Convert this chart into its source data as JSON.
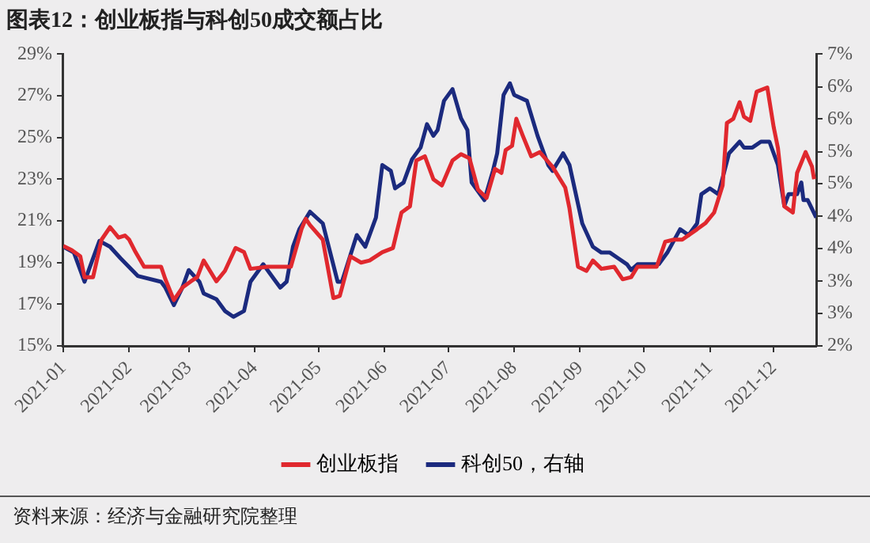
{
  "chart_data": {
    "type": "line",
    "title": "图表12：创业板指与科创50成交额占比",
    "annotations": [
      "资料来源：经济与金融研究院整理"
    ],
    "legend": "bottom",
    "marker": "none",
    "xlim": [
      "2021-01-01",
      "2021-12-21"
    ],
    "xticks": [
      {
        "value": "2021-01-01",
        "label": "2021-01"
      },
      {
        "value": "2021-02-01",
        "label": "2021-02"
      },
      {
        "value": "2021-03-01",
        "label": "2021-03"
      },
      {
        "value": "2021-04-01",
        "label": "2021-04"
      },
      {
        "value": "2021-05-01",
        "label": "2021-05"
      },
      {
        "value": "2021-06-01",
        "label": "2021-06"
      },
      {
        "value": "2021-07-01",
        "label": "2021-07"
      },
      {
        "value": "2021-08-01",
        "label": "2021-08"
      },
      {
        "value": "2021-09-01",
        "label": "2021-09"
      },
      {
        "value": "2021-10-01",
        "label": "2021-10"
      },
      {
        "value": "2021-11-01",
        "label": "2021-11"
      },
      {
        "value": "2021-12-01",
        "label": "2021-12"
      }
    ],
    "ylim": [
      15,
      29
    ],
    "yticks": [
      {
        "value": 15,
        "label": "15%"
      },
      {
        "value": 17,
        "label": "17%"
      },
      {
        "value": 19,
        "label": "19%"
      },
      {
        "value": 21,
        "label": "21%"
      },
      {
        "value": 23,
        "label": "23%"
      },
      {
        "value": 25,
        "label": "25%"
      },
      {
        "value": 27,
        "label": "27%"
      },
      {
        "value": 29,
        "label": "29%"
      }
    ],
    "y2lim": [
      2,
      7
    ],
    "y2ticks": [
      {
        "value": 2,
        "label": "2%"
      },
      {
        "value": 2.56,
        "label": "3%"
      },
      {
        "value": 3.11,
        "label": "3%"
      },
      {
        "value": 3.67,
        "label": "4%"
      },
      {
        "value": 4.22,
        "label": "4%"
      },
      {
        "value": 4.78,
        "label": "5%"
      },
      {
        "value": 5.33,
        "label": "5%"
      },
      {
        "value": 5.89,
        "label": "6%"
      },
      {
        "value": 6.44,
        "label": "6%"
      },
      {
        "value": 7,
        "label": "7%"
      }
    ],
    "series": [
      {
        "name": "创业板指",
        "color": "#e0282e",
        "x": [
          "2021-01-01",
          "2021-01-05",
          "2021-01-09",
          "2021-01-11",
          "2021-01-15",
          "2021-01-19",
          "2021-01-23",
          "2021-01-27",
          "2021-01-30",
          "2021-02-01",
          "2021-02-04",
          "2021-02-08",
          "2021-02-16",
          "2021-02-18",
          "2021-02-22",
          "2021-02-26",
          "2021-03-02",
          "2021-03-05",
          "2021-03-08",
          "2021-03-14",
          "2021-03-18",
          "2021-03-23",
          "2021-03-27",
          "2021-03-30",
          "2021-04-07",
          "2021-04-18",
          "2021-04-23",
          "2021-04-25",
          "2021-04-27",
          "2021-05-03",
          "2021-05-08",
          "2021-05-11",
          "2021-05-16",
          "2021-05-21",
          "2021-05-25",
          "2021-05-31",
          "2021-06-05",
          "2021-06-09",
          "2021-06-13",
          "2021-06-16",
          "2021-06-20",
          "2021-06-24",
          "2021-06-28",
          "2021-07-03",
          "2021-07-07",
          "2021-07-11",
          "2021-07-15",
          "2021-07-19",
          "2021-07-23",
          "2021-07-26",
          "2021-07-28",
          "2021-07-31",
          "2021-08-02",
          "2021-08-05",
          "2021-08-09",
          "2021-08-13",
          "2021-08-19",
          "2021-08-25",
          "2021-08-27",
          "2021-08-31",
          "2021-09-04",
          "2021-09-07",
          "2021-09-11",
          "2021-09-17",
          "2021-09-21",
          "2021-09-25",
          "2021-09-28",
          "2021-10-07",
          "2021-10-11",
          "2021-10-15",
          "2021-10-19",
          "2021-10-26",
          "2021-10-30",
          "2021-11-03",
          "2021-11-07",
          "2021-11-09",
          "2021-11-12",
          "2021-11-15",
          "2021-11-17",
          "2021-11-20",
          "2021-11-23",
          "2021-11-28",
          "2021-12-01",
          "2021-12-03",
          "2021-12-06",
          "2021-12-10",
          "2021-12-12",
          "2021-12-16",
          "2021-12-19",
          "2021-12-20"
        ],
        "values": [
          19.8,
          19.6,
          19.3,
          18.3,
          18.3,
          20.1,
          20.7,
          20.2,
          20.3,
          20.1,
          19.5,
          18.8,
          18.8,
          18.2,
          17.2,
          17.8,
          18.1,
          18.3,
          19.1,
          18.1,
          18.6,
          19.7,
          19.5,
          18.7,
          18.8,
          18.8,
          20.6,
          21.1,
          20.8,
          20.1,
          17.3,
          17.4,
          19.3,
          19.0,
          19.1,
          19.5,
          19.7,
          21.4,
          21.7,
          23.9,
          24.1,
          23.0,
          22.7,
          23.9,
          24.2,
          24.0,
          22.5,
          22.1,
          23.5,
          23.3,
          24.4,
          24.6,
          25.9,
          25.1,
          24.1,
          24.3,
          23.6,
          22.6,
          21.6,
          18.8,
          18.6,
          19.1,
          18.7,
          18.8,
          18.2,
          18.3,
          18.8,
          18.8,
          20.0,
          20.1,
          20.1,
          20.6,
          20.9,
          21.4,
          22.7,
          25.7,
          25.9,
          26.7,
          26.0,
          25.8,
          27.2,
          27.4,
          25.5,
          24.5,
          21.7,
          21.4,
          23.3,
          24.3,
          23.6,
          23.0
        ]
      },
      {
        "name": "科创50，右轴",
        "color": "#1b2a7e",
        "axis": "y2",
        "x": [
          "2021-01-01",
          "2021-01-06",
          "2021-01-11",
          "2021-01-15",
          "2021-01-18",
          "2021-01-23",
          "2021-01-28",
          "2021-02-05",
          "2021-02-16",
          "2021-02-18",
          "2021-02-22",
          "2021-02-26",
          "2021-03-01",
          "2021-03-06",
          "2021-03-08",
          "2021-03-14",
          "2021-03-18",
          "2021-03-22",
          "2021-03-27",
          "2021-03-30",
          "2021-04-05",
          "2021-04-11",
          "2021-04-13",
          "2021-04-16",
          "2021-04-19",
          "2021-04-22",
          "2021-04-27",
          "2021-05-03",
          "2021-05-10",
          "2021-05-12",
          "2021-05-19",
          "2021-05-23",
          "2021-05-28",
          "2021-05-31",
          "2021-06-04",
          "2021-06-06",
          "2021-06-10",
          "2021-06-14",
          "2021-06-18",
          "2021-06-21",
          "2021-06-24",
          "2021-06-26",
          "2021-06-29",
          "2021-07-03",
          "2021-07-07",
          "2021-07-10",
          "2021-07-12",
          "2021-07-18",
          "2021-07-22",
          "2021-07-24",
          "2021-07-27",
          "2021-07-30",
          "2021-08-01",
          "2021-08-07",
          "2021-08-12",
          "2021-08-17",
          "2021-08-19",
          "2021-08-24",
          "2021-08-27",
          "2021-09-02",
          "2021-09-07",
          "2021-09-11",
          "2021-09-15",
          "2021-09-19",
          "2021-09-23",
          "2021-09-25",
          "2021-09-28",
          "2021-10-08",
          "2021-10-12",
          "2021-10-18",
          "2021-10-22",
          "2021-10-26",
          "2021-10-28",
          "2021-11-01",
          "2021-11-05",
          "2021-11-10",
          "2021-11-15",
          "2021-11-17",
          "2021-11-21",
          "2021-11-25",
          "2021-11-29",
          "2021-12-03",
          "2021-12-06",
          "2021-12-08",
          "2021-12-12",
          "2021-12-14",
          "2021-12-15",
          "2021-12-17",
          "2021-12-21"
        ],
        "values": [
          3.7,
          3.6,
          3.1,
          3.5,
          3.8,
          3.7,
          3.5,
          3.2,
          3.1,
          3.0,
          2.7,
          3.0,
          3.3,
          3.1,
          2.9,
          2.8,
          2.6,
          2.5,
          2.6,
          3.1,
          3.4,
          3.1,
          3.0,
          3.1,
          3.7,
          4.0,
          4.3,
          4.1,
          3.1,
          3.1,
          3.9,
          3.7,
          4.2,
          5.1,
          5.0,
          4.7,
          4.8,
          5.2,
          5.4,
          5.8,
          5.6,
          5.7,
          6.2,
          6.4,
          5.9,
          5.7,
          4.8,
          4.5,
          5.0,
          5.3,
          6.3,
          6.5,
          6.3,
          6.2,
          5.6,
          5.1,
          5.0,
          5.3,
          5.1,
          4.1,
          3.7,
          3.6,
          3.6,
          3.5,
          3.4,
          3.3,
          3.4,
          3.4,
          3.6,
          4.0,
          3.9,
          4.1,
          4.6,
          4.7,
          4.6,
          5.3,
          5.5,
          5.4,
          5.4,
          5.5,
          5.5,
          5.1,
          4.4,
          4.6,
          4.6,
          4.8,
          4.5,
          4.5,
          4.2
        ]
      }
    ]
  }
}
